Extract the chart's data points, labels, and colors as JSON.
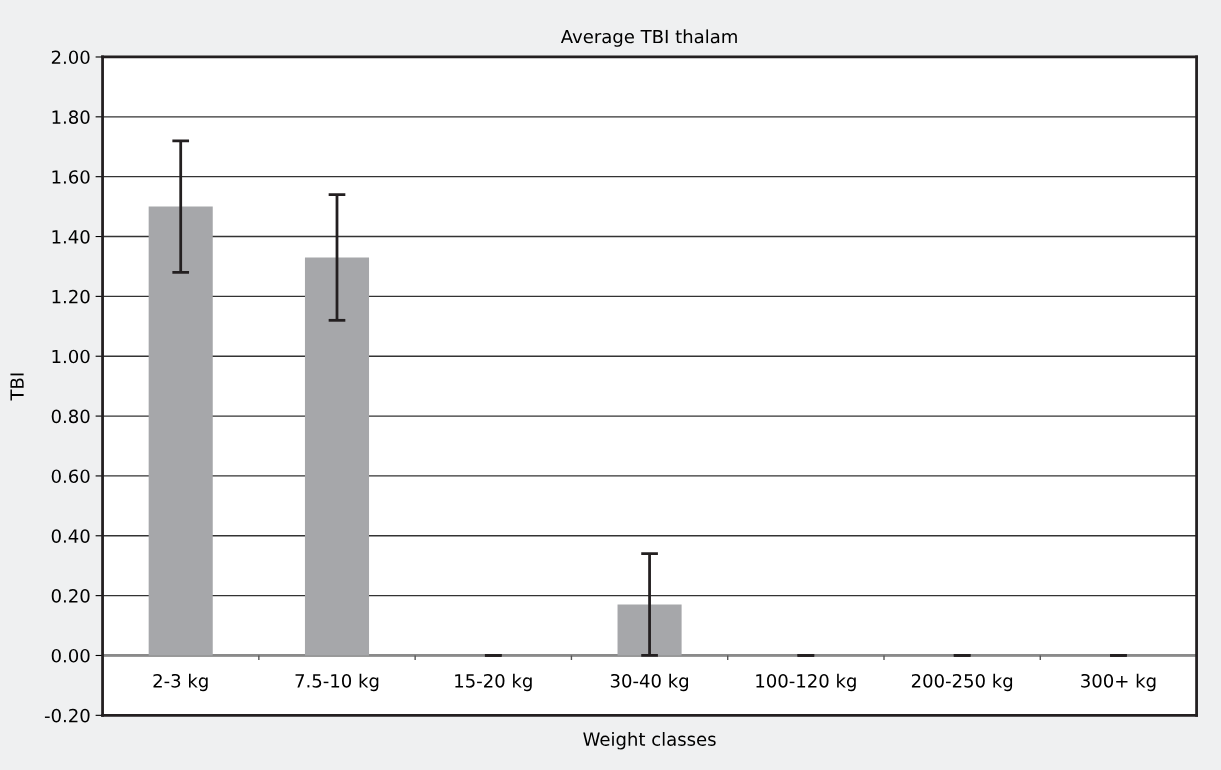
{
  "chart_data": {
    "type": "bar",
    "title": "Average TBI thalam",
    "xlabel": "Weight classes",
    "ylabel": "TBI",
    "categories": [
      "2-3 kg",
      "7.5-10 kg",
      "15-20 kg",
      "30-40 kg",
      "100-120 kg",
      "200-250 kg",
      "300+ kg"
    ],
    "values": [
      1.5,
      1.33,
      0,
      0.17,
      0,
      0,
      0
    ],
    "errors": [
      0.22,
      0.21,
      0,
      0.17,
      0,
      0,
      0
    ],
    "color": "#a6a7aa",
    "ylim": [
      -0.2,
      2.0
    ],
    "yticks": [
      {
        "value": -0.2,
        "label": "-0.20"
      },
      {
        "value": 0,
        "label": "0.00"
      },
      {
        "value": 0.2,
        "label": "0.20"
      },
      {
        "value": 0.4,
        "label": "0.40"
      },
      {
        "value": 0.6,
        "label": "0.60"
      },
      {
        "value": 0.8,
        "label": "0.80"
      },
      {
        "value": 1.0,
        "label": "1.00"
      },
      {
        "value": 1.2,
        "label": "1.20"
      },
      {
        "value": 1.4,
        "label": "1.40"
      },
      {
        "value": 1.6,
        "label": "1.60"
      },
      {
        "value": 1.8,
        "label": "1.80"
      },
      {
        "value": 2.0,
        "label": "2.00"
      }
    ],
    "grid": "y"
  }
}
